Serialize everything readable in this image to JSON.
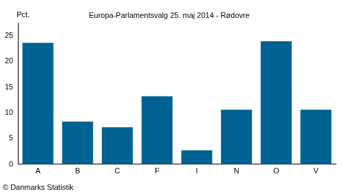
{
  "chart_data": {
    "type": "bar",
    "title": "Europa-Parlamentsvalg 25. maj 2014 - Rødovre",
    "y_label": "Pct.",
    "source": "© Danmarks Statistik",
    "categories": [
      "A",
      "B",
      "C",
      "F",
      "I",
      "N",
      "O",
      "V"
    ],
    "values": [
      23.6,
      8.3,
      7.2,
      13.2,
      2.7,
      10.6,
      23.9,
      10.6
    ],
    "color": "#006193",
    "ylim": [
      0,
      27.5
    ],
    "yticks": [
      0,
      5,
      10,
      15,
      20,
      25
    ],
    "grid": false
  }
}
